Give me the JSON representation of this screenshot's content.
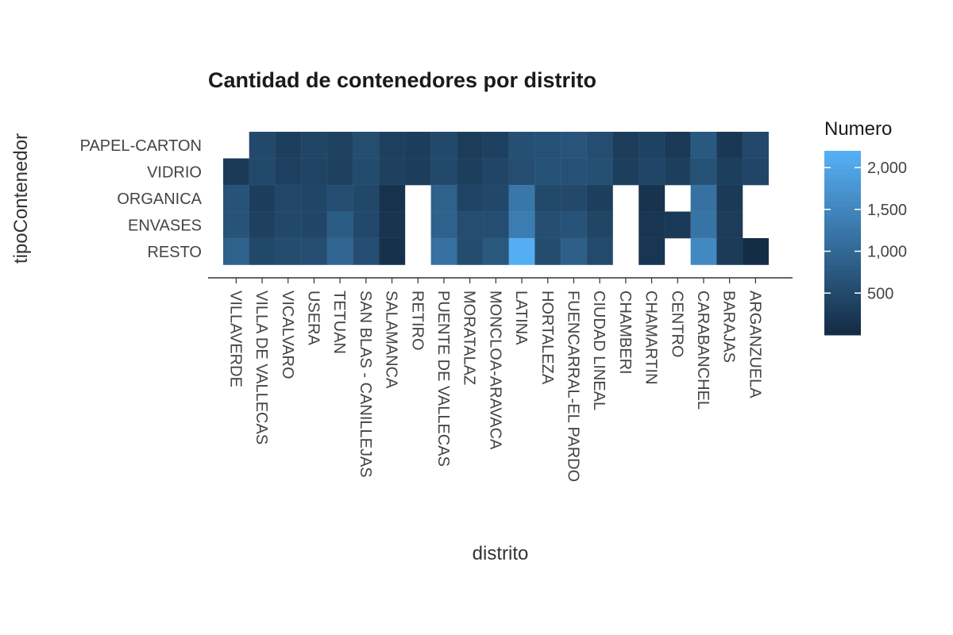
{
  "chart_data": {
    "type": "heatmap",
    "title": "Cantidad de contenedores por distrito",
    "xlabel": "distrito",
    "ylabel": "tipoContenedor",
    "x": [
      "VILLAVERDE",
      "VILLA DE VALLECAS",
      "VICALVARO",
      "USERA",
      "TETUAN",
      "SAN BLAS - CANILLEJAS",
      "SALAMANCA",
      "RETIRO",
      "PUENTE DE VALLECAS",
      "MORATALAZ",
      "MONCLOA-ARAVACA",
      "LATINA",
      "HORTALEZA",
      "FUENCARRAL-EL PARDO",
      "CIUDAD LINEAL",
      "CHAMBERI",
      "CHAMARTIN",
      "CENTRO",
      "CARABANCHEL",
      "BARAJAS",
      "ARGANZUELA"
    ],
    "y": [
      "PAPEL-CARTON",
      "VIDRIO",
      "ORGANICA",
      "ENVASES",
      "RESTO"
    ],
    "values": [
      [
        null,
        500,
        330,
        420,
        380,
        550,
        350,
        300,
        500,
        280,
        350,
        600,
        620,
        680,
        560,
        280,
        370,
        230,
        750,
        220,
        500
      ],
      [
        240,
        480,
        350,
        390,
        360,
        530,
        360,
        300,
        480,
        330,
        430,
        560,
        620,
        620,
        600,
        330,
        430,
        330,
        620,
        330,
        430
      ],
      [
        650,
        310,
        450,
        430,
        560,
        470,
        120,
        null,
        880,
        400,
        460,
        1250,
        480,
        480,
        330,
        null,
        130,
        null,
        1150,
        250,
        null
      ],
      [
        650,
        360,
        470,
        430,
        800,
        500,
        150,
        null,
        900,
        550,
        560,
        1350,
        580,
        650,
        420,
        null,
        180,
        230,
        1180,
        280,
        null
      ],
      [
        900,
        460,
        540,
        560,
        950,
        560,
        100,
        null,
        1150,
        540,
        720,
        2150,
        540,
        860,
        510,
        null,
        170,
        null,
        1550,
        270,
        40
      ]
    ],
    "color_scale": {
      "low": "#132B43",
      "high": "#56B1F7",
      "min": 0,
      "max": 2200
    },
    "legend": {
      "title": "Numero",
      "ticks": [
        500,
        1000,
        1500,
        2000
      ],
      "tick_labels": [
        "500",
        "1,000",
        "1,500",
        "2,000"
      ],
      "position": "right"
    }
  }
}
